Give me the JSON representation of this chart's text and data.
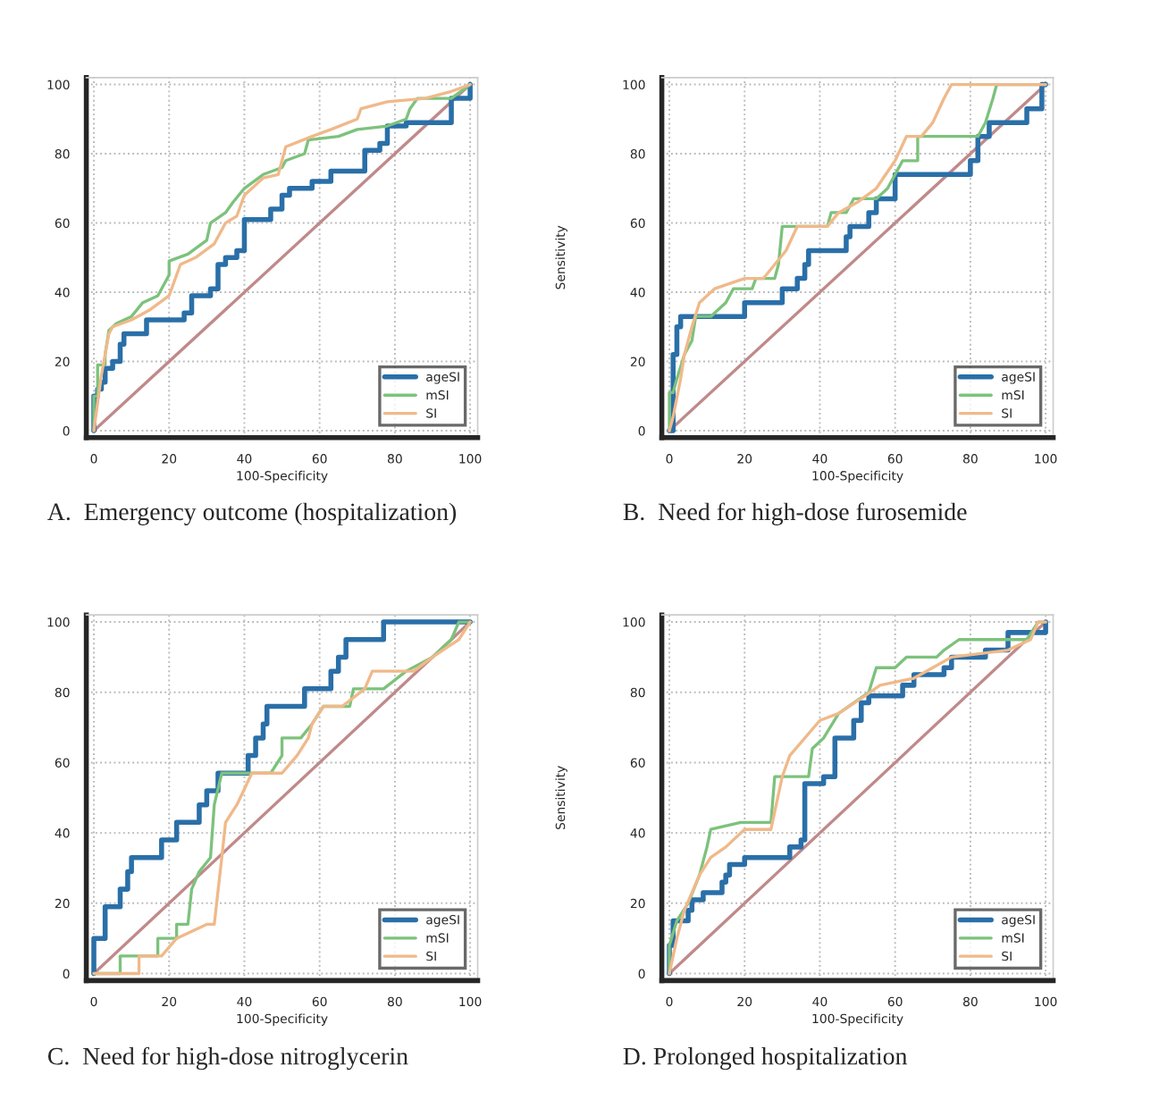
{
  "chart_data": [
    {
      "type": "line",
      "title": "A.  Emergency outcome (hospitalization)",
      "xlabel": "100-Specificity",
      "xlim": [
        -2,
        102
      ],
      "ylim": [
        -2,
        102
      ],
      "xticks": [
        0,
        20,
        40,
        60,
        80,
        100
      ],
      "yticks": [
        0,
        20,
        40,
        60,
        80,
        100
      ],
      "grid": true,
      "legend": "bottom right",
      "series": [
        {
          "name": "ageSI",
          "color": "#2a6fa8",
          "x": [
            0,
            0,
            1,
            1,
            2,
            2,
            3,
            3,
            5,
            5,
            7,
            7,
            8,
            8,
            14,
            14,
            24,
            24,
            26,
            26,
            31,
            31,
            33,
            33,
            35,
            35,
            38,
            38,
            40,
            40,
            47,
            47,
            50,
            50,
            52,
            52,
            58,
            58,
            63,
            63,
            72,
            72,
            76,
            76,
            78,
            78,
            83,
            83,
            95,
            95,
            100,
            100
          ],
          "values": [
            0,
            10,
            10,
            12,
            12,
            14,
            14,
            18,
            18,
            20,
            20,
            25,
            25,
            28,
            28,
            32,
            32,
            34,
            34,
            39,
            39,
            41,
            41,
            48,
            48,
            50,
            50,
            52,
            52,
            61,
            61,
            64,
            64,
            68,
            68,
            70,
            70,
            72,
            72,
            75,
            75,
            81,
            81,
            83,
            83,
            88,
            88,
            89,
            89,
            96,
            96,
            100
          ]
        },
        {
          "name": "mSI",
          "color": "#7cc27c",
          "x": [
            0,
            0,
            1,
            1,
            3,
            3,
            4,
            6,
            10,
            13,
            17,
            20,
            20,
            25,
            30,
            31,
            35,
            37,
            40,
            45,
            50,
            51,
            56,
            57,
            65,
            70,
            78,
            83,
            84,
            86,
            95,
            100
          ],
          "values": [
            0,
            10,
            10,
            19,
            19,
            22,
            29,
            31,
            33,
            37,
            39,
            45,
            49,
            51,
            55,
            60,
            63,
            66,
            70,
            74,
            76,
            78,
            80,
            84,
            85,
            87,
            88,
            90,
            93,
            96,
            96,
            100
          ]
        },
        {
          "name": "SI",
          "color": "#f0b98a",
          "x": [
            0,
            1,
            2,
            3,
            4,
            5,
            10,
            15,
            20,
            23,
            27,
            32,
            35,
            38,
            40,
            45,
            49,
            51,
            58,
            63,
            70,
            71,
            78,
            88,
            95,
            100
          ],
          "values": [
            0,
            8,
            16,
            22,
            28,
            30,
            32,
            35,
            39,
            48,
            50,
            54,
            60,
            62,
            68,
            73,
            74,
            82,
            85,
            87,
            90,
            93,
            95,
            96,
            98,
            100
          ]
        },
        {
          "color": "#c08a8a",
          "x": [
            0,
            100
          ],
          "values": [
            0,
            100
          ]
        }
      ]
    },
    {
      "type": "line",
      "title": "B.  Need for high-dose furosemide",
      "xlabel": "100-Specificity",
      "ylabel": "Sensitivity",
      "xlim": [
        -2,
        102
      ],
      "ylim": [
        -2,
        102
      ],
      "xticks": [
        0,
        20,
        40,
        60,
        80,
        100
      ],
      "yticks": [
        0,
        20,
        40,
        60,
        80,
        100
      ],
      "grid": true,
      "legend": "bottom right",
      "series": [
        {
          "name": "ageSI",
          "color": "#2a6fa8",
          "x": [
            0,
            1,
            1,
            2,
            2,
            3,
            3,
            20,
            20,
            30,
            30,
            34,
            34,
            36,
            36,
            37,
            37,
            47,
            47,
            48,
            48,
            53,
            53,
            55,
            55,
            60,
            60,
            80,
            80,
            82,
            82,
            85,
            85,
            95,
            95,
            99,
            99,
            100
          ],
          "values": [
            0,
            0,
            22,
            22,
            30,
            30,
            33,
            33,
            37,
            37,
            41,
            41,
            44,
            44,
            48,
            48,
            52,
            52,
            56,
            56,
            59,
            59,
            63,
            63,
            67,
            67,
            74,
            74,
            78,
            78,
            85,
            85,
            89,
            89,
            93,
            93,
            100,
            100
          ]
        },
        {
          "name": "mSI",
          "color": "#7cc27c",
          "x": [
            0,
            0,
            1,
            2,
            4,
            6,
            7,
            11,
            15,
            17,
            22,
            23,
            28,
            29,
            30,
            42,
            43,
            47,
            49,
            55,
            58,
            62,
            66,
            66,
            82,
            84,
            86,
            87,
            100
          ],
          "values": [
            0,
            11,
            11,
            15,
            22,
            26,
            33,
            33,
            37,
            41,
            41,
            44,
            44,
            48,
            59,
            59,
            63,
            63,
            67,
            67,
            70,
            78,
            78,
            85,
            85,
            89,
            96,
            100,
            100
          ]
        },
        {
          "name": "SI",
          "color": "#f0b98a",
          "x": [
            0,
            1,
            3,
            4,
            6,
            8,
            12,
            20,
            25,
            28,
            31,
            34,
            42,
            45,
            50,
            55,
            60,
            63,
            67,
            70,
            73,
            75,
            100
          ],
          "values": [
            0,
            4,
            15,
            22,
            30,
            37,
            41,
            44,
            44,
            48,
            52,
            59,
            59,
            63,
            66,
            70,
            78,
            85,
            85,
            89,
            96,
            100,
            100
          ]
        },
        {
          "color": "#c08a8a",
          "x": [
            0,
            100
          ],
          "values": [
            0,
            100
          ]
        }
      ]
    },
    {
      "type": "line",
      "title": "C.  Need for high-dose nitroglycerin",
      "xlabel": "100-Specificity",
      "xlim": [
        -2,
        102
      ],
      "ylim": [
        -2,
        102
      ],
      "xticks": [
        0,
        20,
        40,
        60,
        80,
        100
      ],
      "yticks": [
        0,
        20,
        40,
        60,
        80,
        100
      ],
      "grid": true,
      "legend": "bottom right",
      "series": [
        {
          "name": "ageSI",
          "color": "#2a6fa8",
          "x": [
            0,
            0,
            3,
            3,
            7,
            7,
            9,
            9,
            10,
            10,
            18,
            18,
            22,
            22,
            28,
            28,
            30,
            30,
            33,
            33,
            41,
            41,
            43,
            43,
            45,
            45,
            46,
            46,
            56,
            56,
            63,
            63,
            65,
            65,
            67,
            67,
            77,
            77,
            100
          ],
          "values": [
            0,
            10,
            10,
            19,
            19,
            24,
            24,
            29,
            29,
            33,
            33,
            38,
            38,
            43,
            43,
            48,
            48,
            52,
            52,
            57,
            57,
            62,
            62,
            67,
            67,
            71,
            71,
            76,
            76,
            81,
            81,
            86,
            86,
            90,
            90,
            95,
            95,
            100,
            100
          ]
        },
        {
          "name": "mSI",
          "color": "#7cc27c",
          "x": [
            0,
            7,
            7,
            17,
            17,
            22,
            22,
            25,
            26,
            28,
            31,
            32,
            34,
            47,
            50,
            50,
            55,
            58,
            61,
            68,
            69,
            77,
            83,
            90,
            95,
            97,
            100
          ],
          "values": [
            0,
            0,
            5,
            5,
            10,
            10,
            14,
            14,
            24,
            29,
            33,
            48,
            57,
            57,
            62,
            67,
            67,
            71,
            76,
            76,
            81,
            81,
            86,
            90,
            95,
            100,
            100
          ]
        },
        {
          "name": "SI",
          "color": "#f0b98a",
          "x": [
            0,
            12,
            12,
            18,
            22,
            30,
            32,
            34,
            35,
            38,
            42,
            50,
            54,
            57,
            58,
            61,
            66,
            72,
            74,
            85,
            90,
            97,
            100
          ],
          "values": [
            0,
            0,
            5,
            5,
            10,
            14,
            14,
            33,
            43,
            48,
            57,
            57,
            62,
            67,
            71,
            76,
            76,
            81,
            86,
            86,
            90,
            95,
            100
          ]
        },
        {
          "color": "#c08a8a",
          "x": [
            0,
            100
          ],
          "values": [
            0,
            100
          ]
        }
      ]
    },
    {
      "type": "line",
      "title": "D. Prolonged hospitalization",
      "xlabel": "100-Specificity",
      "ylabel": "Sensitivity",
      "xlim": [
        -2,
        102
      ],
      "ylim": [
        -2,
        102
      ],
      "xticks": [
        0,
        20,
        40,
        60,
        80,
        100
      ],
      "yticks": [
        0,
        20,
        40,
        60,
        80,
        100
      ],
      "grid": true,
      "legend": "bottom right",
      "series": [
        {
          "name": "ageSI",
          "color": "#2a6fa8",
          "x": [
            0,
            0,
            1,
            1,
            5,
            5,
            6,
            6,
            9,
            9,
            14,
            14,
            15,
            15,
            16,
            16,
            20,
            20,
            32,
            32,
            35,
            35,
            36,
            36,
            41,
            41,
            44,
            44,
            49,
            49,
            51,
            51,
            53,
            53,
            62,
            62,
            65,
            65,
            73,
            73,
            75,
            75,
            84,
            84,
            90,
            90,
            100,
            100
          ],
          "values": [
            0,
            8,
            8,
            15,
            15,
            18,
            18,
            21,
            21,
            23,
            23,
            26,
            26,
            28,
            28,
            31,
            31,
            33,
            33,
            36,
            36,
            38,
            38,
            54,
            54,
            56,
            56,
            67,
            67,
            72,
            72,
            77,
            77,
            79,
            79,
            82,
            82,
            85,
            85,
            87,
            87,
            90,
            90,
            92,
            92,
            97,
            97,
            100
          ]
        },
        {
          "name": "mSI",
          "color": "#7cc27c",
          "x": [
            0,
            0,
            2,
            5,
            8,
            10,
            11,
            19,
            27,
            28,
            37,
            38,
            41,
            45,
            53,
            55,
            60,
            63,
            71,
            73,
            77,
            95,
            98,
            100
          ],
          "values": [
            0,
            8,
            15,
            20,
            28,
            36,
            41,
            43,
            43,
            56,
            56,
            64,
            67,
            74,
            80,
            87,
            87,
            90,
            90,
            92,
            95,
            95,
            100,
            100
          ]
        },
        {
          "name": "SI",
          "color": "#f0b98a",
          "x": [
            0,
            2,
            4,
            8,
            11,
            15,
            20,
            27,
            30,
            32,
            40,
            45,
            52,
            56,
            65,
            70,
            75,
            90,
            96,
            98,
            100
          ],
          "values": [
            0,
            10,
            18,
            28,
            33,
            36,
            41,
            41,
            56,
            62,
            72,
            74,
            79,
            82,
            84,
            87,
            90,
            92,
            95,
            100,
            100
          ]
        },
        {
          "color": "#c08a8a",
          "x": [
            0,
            100
          ],
          "values": [
            0,
            100
          ]
        }
      ]
    }
  ]
}
